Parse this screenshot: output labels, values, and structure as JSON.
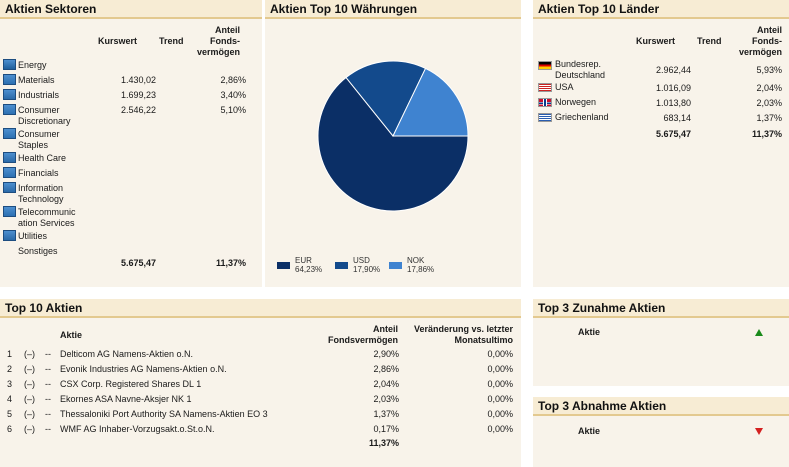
{
  "sectors": {
    "title": "Aktien Sektoren",
    "col_kurswert": "Kurswert",
    "col_trend": "Trend",
    "col_anteil": [
      "Anteil",
      "Fonds-",
      "vermögen"
    ],
    "rows": [
      {
        "name": "Energy",
        "icon": "energy-icon",
        "kurswert": "",
        "anteil": ""
      },
      {
        "name": "Materials",
        "icon": "materials-icon",
        "kurswert": "1.430,02",
        "anteil": "2,86%"
      },
      {
        "name": "Industrials",
        "icon": "industrials-icon",
        "kurswert": "1.699,23",
        "anteil": "3,40%"
      },
      {
        "name": "Consumer Discretionary",
        "icon": "consumer-discretionary-icon",
        "kurswert": "2.546,22",
        "anteil": "5,10%"
      },
      {
        "name": "Consumer Staples",
        "icon": "consumer-staples-icon",
        "kurswert": "",
        "anteil": ""
      },
      {
        "name": "Health Care",
        "icon": "health-care-icon",
        "kurswert": "",
        "anteil": ""
      },
      {
        "name": "Financials",
        "icon": "financials-icon",
        "kurswert": "",
        "anteil": ""
      },
      {
        "name": "Information Technology",
        "icon": "information-technology-icon",
        "kurswert": "",
        "anteil": ""
      },
      {
        "name": "Telecommunic ation Services",
        "icon": "telecommunication-icon",
        "kurswert": "",
        "anteil": ""
      },
      {
        "name": "Utilities",
        "icon": "utilities-icon",
        "kurswert": "",
        "anteil": ""
      },
      {
        "name": "Sonstiges",
        "icon": "",
        "kurswert": "",
        "anteil": ""
      }
    ],
    "total_kurswert": "5.675,47",
    "total_anteil": "11,37%"
  },
  "currencies": {
    "title": "Aktien Top 10 Währungen",
    "chart_data": {
      "type": "pie",
      "title": "Aktien Top 10 Währungen",
      "categories": [
        "EUR",
        "USD",
        "NOK"
      ],
      "values": [
        64.23,
        17.9,
        17.86
      ],
      "labels": [
        "64,23%",
        "17,90%",
        "17,86%"
      ],
      "colors": [
        "#0b2f66",
        "#134a8c",
        "#3f83d0"
      ],
      "legend": "bottom"
    }
  },
  "countries": {
    "title": "Aktien Top 10 Länder",
    "col_kurswert": "Kurswert",
    "col_trend": "Trend",
    "col_anteil": [
      "Anteil",
      "Fonds-",
      "vermögen"
    ],
    "rows": [
      {
        "name": "Bundesrep. Deutschland",
        "flag": "germany-flag-icon",
        "kurswert": "2.962,44",
        "anteil": "5,93%"
      },
      {
        "name": "USA",
        "flag": "usa-flag-icon",
        "kurswert": "1.016,09",
        "anteil": "2,04%"
      },
      {
        "name": "Norwegen",
        "flag": "norway-flag-icon",
        "kurswert": "1.013,80",
        "anteil": "2,03%"
      },
      {
        "name": "Griechenland",
        "flag": "greece-flag-icon",
        "kurswert": "683,14",
        "anteil": "1,37%"
      }
    ],
    "total_kurswert": "5.675,47",
    "total_anteil": "11,37%"
  },
  "top10": {
    "title": "Top 10 Aktien",
    "col_aktie": "Aktie",
    "col_anteil": [
      "Anteil",
      "Fondsvermögen"
    ],
    "col_change": [
      "Veränderung vs. letzter",
      "Monatsultimo"
    ],
    "rows": [
      {
        "rank": "1",
        "mark1": "(–)",
        "mark2": "--",
        "name": "Delticom AG Namens-Aktien o.N.",
        "anteil": "2,90%",
        "change": "0,00%"
      },
      {
        "rank": "2",
        "mark1": "(–)",
        "mark2": "--",
        "name": "Evonik Industries AG Namens-Aktien o.N.",
        "anteil": "2,86%",
        "change": "0,00%"
      },
      {
        "rank": "3",
        "mark1": "(–)",
        "mark2": "--",
        "name": "CSX Corp. Registered Shares DL 1",
        "anteil": "2,04%",
        "change": "0,00%"
      },
      {
        "rank": "4",
        "mark1": "(–)",
        "mark2": "--",
        "name": "Ekornes ASA Navne-Aksjer NK 1",
        "anteil": "2,03%",
        "change": "0,00%"
      },
      {
        "rank": "5",
        "mark1": "(–)",
        "mark2": "--",
        "name": "Thessaloniki Port Authority SA Namens-Aktien EO 3",
        "anteil": "1,37%",
        "change": "0,00%"
      },
      {
        "rank": "6",
        "mark1": "(–)",
        "mark2": "--",
        "name": "WMF AG Inhaber-Vorzugsakt.o.St.o.N.",
        "anteil": "0,17%",
        "change": "0,00%"
      }
    ],
    "total_anteil": "11,37%"
  },
  "gainers": {
    "title": "Top 3 Zunahme Aktien",
    "col_aktie": "Aktie",
    "trend_color": "#1a8a1a"
  },
  "losers": {
    "title": "Top 3 Abnahme Aktien",
    "col_aktie": "Aktie",
    "trend_color": "#d42020"
  }
}
